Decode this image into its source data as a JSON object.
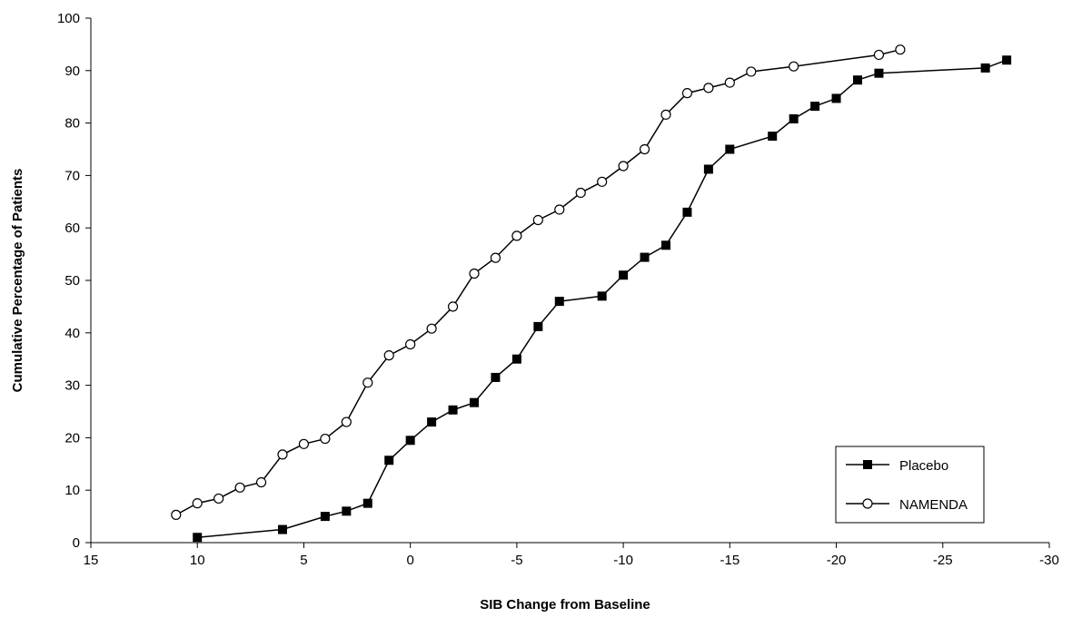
{
  "chart_data": {
    "type": "line",
    "xlabel": "SIB Change from Baseline",
    "ylabel": "Cumulative Percentage of Patients",
    "xlim": [
      15,
      -30
    ],
    "ylim": [
      0,
      100
    ],
    "x_ticks": [
      15,
      10,
      5,
      0,
      -5,
      -10,
      -15,
      -20,
      -25,
      -30
    ],
    "y_ticks": [
      0,
      10,
      20,
      30,
      40,
      50,
      60,
      70,
      80,
      90,
      100
    ],
    "grid": false,
    "legend_position": "bottom-right",
    "series": [
      {
        "name": "Placebo",
        "marker": "filled-square",
        "color": "#000000",
        "x": [
          10,
          6,
          4,
          3,
          2,
          1,
          0,
          -1,
          -2,
          -3,
          -4,
          -5,
          -6,
          -7,
          -9,
          -10,
          -11,
          -12,
          -13,
          -14,
          -15,
          -17,
          -18,
          -19,
          -20,
          -21,
          -22,
          -27,
          -28
        ],
        "y": [
          1,
          2.5,
          5,
          6,
          7.5,
          15.7,
          19.5,
          23,
          25.3,
          26.7,
          31.5,
          35,
          41.2,
          46,
          47,
          51,
          54.4,
          56.7,
          63,
          71.2,
          75,
          77.5,
          80.8,
          83.2,
          84.7,
          88.2,
          89.5,
          90.5,
          92
        ]
      },
      {
        "name": "NAMENDA",
        "marker": "open-circle",
        "color": "#000000",
        "x": [
          11,
          10,
          9,
          8,
          7,
          6,
          5,
          4,
          3,
          2,
          1,
          0,
          -1,
          -2,
          -3,
          -4,
          -5,
          -6,
          -7,
          -8,
          -9,
          -10,
          -11,
          -12,
          -13,
          -14,
          -15,
          -16,
          -18,
          -22,
          -23
        ],
        "y": [
          5.3,
          7.5,
          8.4,
          10.5,
          11.5,
          16.8,
          18.8,
          19.8,
          23,
          30.5,
          35.7,
          37.8,
          40.8,
          45,
          51.3,
          54.3,
          58.5,
          61.5,
          63.5,
          66.7,
          68.8,
          71.8,
          75,
          81.6,
          85.7,
          86.7,
          87.7,
          89.8,
          90.8,
          93,
          94
        ]
      }
    ]
  }
}
